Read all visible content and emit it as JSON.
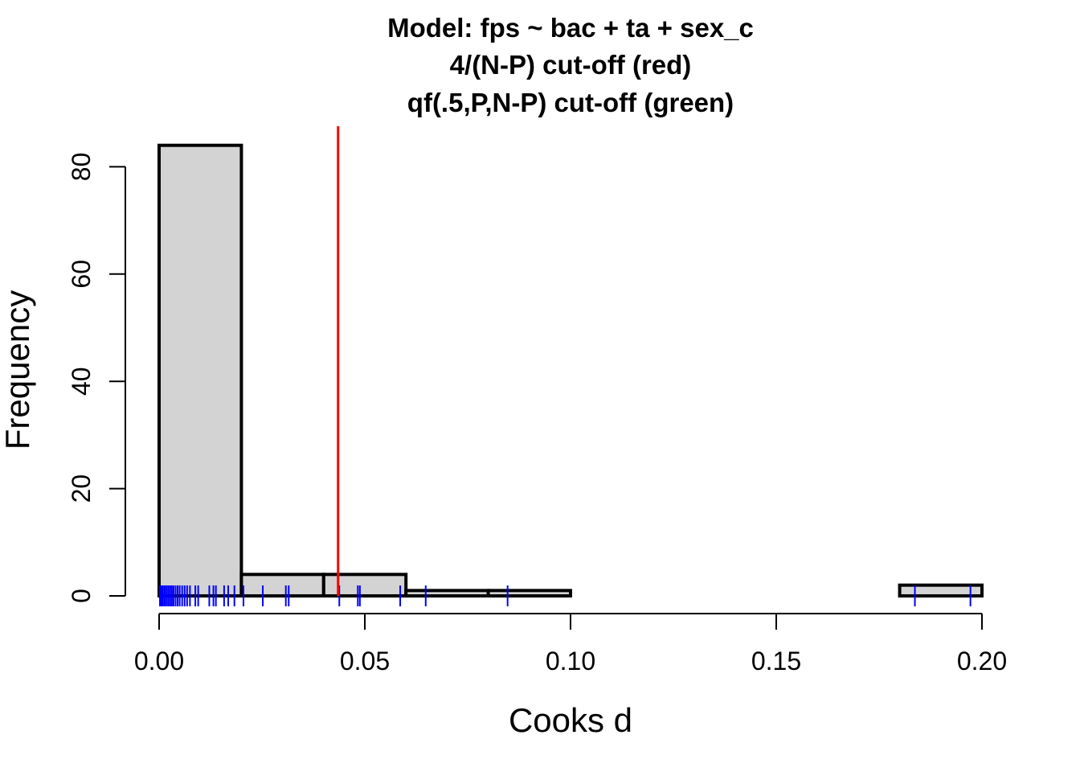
{
  "chart_data": {
    "type": "histogram",
    "title_lines": [
      "Model: fps ~ bac + ta + sex_c",
      "4/(N-P) cut-off (red)",
      "qf(.5,P,N-P) cut-off (green)"
    ],
    "xlabel": "Cooks d",
    "ylabel": "Frequency",
    "xlim": [
      0,
      0.2
    ],
    "ylim": [
      0,
      85
    ],
    "x_ticks": [
      0,
      0.05,
      0.1,
      0.15,
      0.2
    ],
    "x_tick_labels": [
      "0.00",
      "0.05",
      "0.10",
      "0.15",
      "0.20"
    ],
    "y_ticks": [
      0,
      20,
      40,
      60,
      80
    ],
    "y_tick_labels": [
      "0",
      "20",
      "40",
      "60",
      "80"
    ],
    "bins": [
      {
        "start": 0.0,
        "end": 0.02,
        "count": 84
      },
      {
        "start": 0.02,
        "end": 0.04,
        "count": 4
      },
      {
        "start": 0.04,
        "end": 0.06,
        "count": 4
      },
      {
        "start": 0.06,
        "end": 0.08,
        "count": 1
      },
      {
        "start": 0.08,
        "end": 0.1,
        "count": 1
      },
      {
        "start": 0.1,
        "end": 0.12,
        "count": 0
      },
      {
        "start": 0.12,
        "end": 0.14,
        "count": 0
      },
      {
        "start": 0.14,
        "end": 0.16,
        "count": 0
      },
      {
        "start": 0.16,
        "end": 0.18,
        "count": 0
      },
      {
        "start": 0.18,
        "end": 0.2,
        "count": 2
      }
    ],
    "bar_fill": "#d3d3d3",
    "bar_stroke": "#000000",
    "rug_color": "#0000ff",
    "rug_values": [
      0.0002,
      0.0005,
      0.0008,
      0.0012,
      0.0015,
      0.0019,
      0.0023,
      0.0027,
      0.0031,
      0.0035,
      0.004,
      0.0045,
      0.005,
      0.0056,
      0.0062,
      0.0068,
      0.0075,
      0.0088,
      0.0095,
      0.0122,
      0.0132,
      0.0138,
      0.0158,
      0.0168,
      0.0183,
      0.0205,
      0.0252,
      0.0308,
      0.0315,
      0.0438,
      0.0483,
      0.0488,
      0.0586,
      0.0648,
      0.0847,
      0.1837,
      0.1972
    ],
    "cutoff_lines": [
      {
        "label": "4/(N-P)",
        "value": 0.0435,
        "color": "#ff0000"
      }
    ]
  }
}
